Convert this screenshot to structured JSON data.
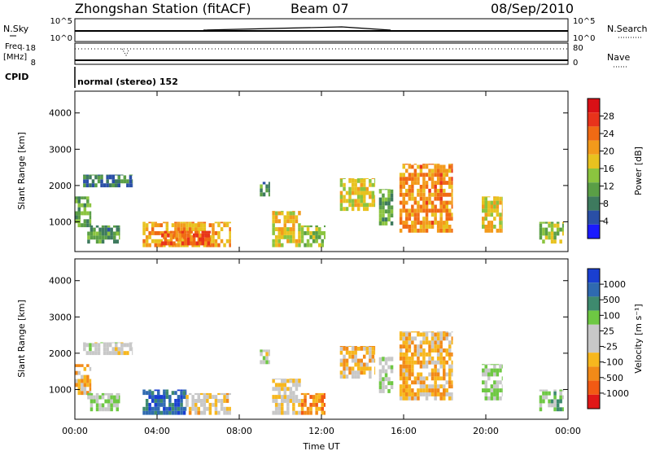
{
  "header": {
    "station": "Zhongshan Station (fitACF)",
    "beam": "Beam 07",
    "date": "08/Sep/2010"
  },
  "top_panels": {
    "nsky_label": "N.Sky",
    "nsky_ticks": [
      "10^5",
      "10^0"
    ],
    "nsearch_label": "N.Search",
    "nsearch_ticks": [
      "10^5",
      "10^0"
    ],
    "freq_label_1": "Freq.",
    "freq_label_2": "[MHz]",
    "freq_ticks": [
      "18",
      "8"
    ],
    "nave_label": "Nave",
    "nave_ticks": [
      "80",
      "0"
    ],
    "cpid_label": "CPID",
    "cpid_text": "normal (stereo) 152"
  },
  "axes": {
    "ylabel": "Slant Range [km]",
    "y_ticks": [
      "4000",
      "3000",
      "2000",
      "1000"
    ],
    "xlabel": "Time UT",
    "x_ticks": [
      "00:00",
      "04:00",
      "08:00",
      "12:00",
      "16:00",
      "20:00",
      "00:00"
    ]
  },
  "colorbars": {
    "power_label": "Power [dB]",
    "power_ticks": [
      "28",
      "24",
      "20",
      "16",
      "12",
      "8",
      "4"
    ],
    "velocity_label": "Velocity [m s⁻¹]",
    "velocity_ticks": [
      "1000",
      "500",
      "100",
      "25",
      "-25",
      "-100",
      "-500",
      "-1000"
    ]
  },
  "colors": {
    "power_scale": [
      "#1a1aff",
      "#2a4fa6",
      "#3e7a5e",
      "#5a9e46",
      "#8bc43f",
      "#e8c21f",
      "#f39a1b",
      "#f06a14",
      "#e8331b",
      "#d91016"
    ],
    "velocity_scale": [
      "#e01818",
      "#f25a14",
      "#f28a18",
      "#f7b71e",
      "#c8c8c8",
      "#c8c8c8",
      "#6ec843",
      "#3e8a6e",
      "#2f6ab0",
      "#1a3fd1"
    ]
  },
  "chart_data": [
    {
      "type": "heatmap",
      "title": "Power [dB]",
      "xlabel": "Time UT",
      "ylabel": "Slant Range [km]",
      "xlim": [
        0,
        24
      ],
      "ylim": [
        180,
        4600
      ],
      "clim": [
        0,
        32
      ],
      "patches": [
        {
          "t": [
            0.0,
            0.8
          ],
          "r": [
            850,
            1700
          ],
          "v": 12
        },
        {
          "t": [
            0.4,
            2.8
          ],
          "r": [
            1950,
            2300
          ],
          "v": 8
        },
        {
          "t": [
            0.6,
            2.2
          ],
          "r": [
            400,
            900
          ],
          "v": 10
        },
        {
          "t": [
            3.3,
            7.6
          ],
          "r": [
            300,
            1000
          ],
          "v": 20
        },
        {
          "t": [
            4.2,
            6.6
          ],
          "r": [
            350,
            750
          ],
          "v": 25
        },
        {
          "t": [
            9.0,
            9.5
          ],
          "r": [
            1700,
            2100
          ],
          "v": 10
        },
        {
          "t": [
            9.6,
            11.0
          ],
          "r": [
            300,
            1300
          ],
          "v": 18
        },
        {
          "t": [
            11.0,
            12.2
          ],
          "r": [
            300,
            900
          ],
          "v": 14
        },
        {
          "t": [
            12.9,
            14.6
          ],
          "r": [
            1300,
            2200
          ],
          "v": 17
        },
        {
          "t": [
            14.8,
            15.5
          ],
          "r": [
            900,
            1900
          ],
          "v": 12
        },
        {
          "t": [
            15.8,
            18.4
          ],
          "r": [
            700,
            2600
          ],
          "v": 22
        },
        {
          "t": [
            19.8,
            20.8
          ],
          "r": [
            700,
            1700
          ],
          "v": 18
        },
        {
          "t": [
            22.6,
            23.8
          ],
          "r": [
            400,
            1000
          ],
          "v": 14
        }
      ]
    },
    {
      "type": "heatmap",
      "title": "Velocity [m s⁻¹]",
      "xlabel": "Time UT",
      "ylabel": "Slant Range [km]",
      "xlim": [
        0,
        24
      ],
      "ylim": [
        180,
        4600
      ],
      "clim": [
        -1000,
        1000
      ],
      "patches": [
        {
          "t": [
            0.0,
            0.8
          ],
          "r": [
            850,
            1700
          ],
          "v": -300
        },
        {
          "t": [
            0.4,
            2.8
          ],
          "r": [
            1950,
            2300
          ],
          "v": 0
        },
        {
          "t": [
            0.6,
            2.2
          ],
          "r": [
            400,
            900
          ],
          "v": 150
        },
        {
          "t": [
            3.3,
            5.4
          ],
          "r": [
            300,
            1000
          ],
          "v": 700
        },
        {
          "t": [
            5.4,
            7.6
          ],
          "r": [
            300,
            900
          ],
          "v": -200
        },
        {
          "t": [
            9.0,
            9.5
          ],
          "r": [
            1700,
            2100
          ],
          "v": 0
        },
        {
          "t": [
            9.6,
            11.0
          ],
          "r": [
            300,
            1300
          ],
          "v": -150
        },
        {
          "t": [
            11.0,
            12.2
          ],
          "r": [
            300,
            900
          ],
          "v": -500
        },
        {
          "t": [
            12.9,
            14.6
          ],
          "r": [
            1300,
            2200
          ],
          "v": -250
        },
        {
          "t": [
            14.8,
            15.5
          ],
          "r": [
            900,
            1900
          ],
          "v": 60
        },
        {
          "t": [
            15.8,
            18.4
          ],
          "r": [
            700,
            2600
          ],
          "v": -300
        },
        {
          "t": [
            19.8,
            20.8
          ],
          "r": [
            700,
            1700
          ],
          "v": 150
        },
        {
          "t": [
            22.6,
            23.8
          ],
          "r": [
            400,
            1000
          ],
          "v": 200
        }
      ]
    }
  ]
}
